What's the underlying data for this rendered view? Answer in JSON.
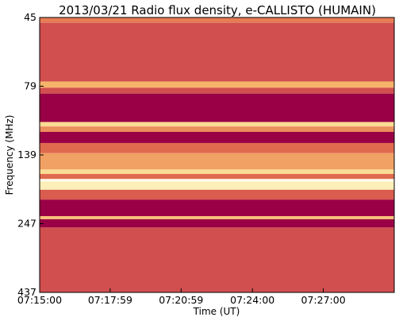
{
  "chart_data": {
    "type": "heatmap",
    "title": "2013/03/21  Radio flux density, e-CALLISTO (HUMAIN)",
    "xlabel": "Time (UT)",
    "ylabel": "Frequency (MHz)",
    "x_tick_labels": [
      "07:15:00",
      "07:17:59",
      "07:20:59",
      "07:24:00",
      "07:27:00"
    ],
    "x_tick_values": [
      "07:15:00",
      "07:17:59",
      "07:20:59",
      "07:24:00",
      "07:27:00"
    ],
    "xlim": [
      "07:15:00",
      "07:30:00"
    ],
    "y_tick_labels": [
      "45",
      "79",
      "139",
      "247",
      "437"
    ],
    "y_tick_values": [
      45,
      79,
      139,
      247,
      437
    ],
    "ylim": [
      45,
      437
    ],
    "y_inverted": true,
    "grid": false,
    "colormap": [
      "#9a0046",
      "#c2334f",
      "#e06a4e",
      "#f6b36a",
      "#fde9a2",
      "#ffffff"
    ],
    "bands": [
      {
        "f_top": 45,
        "f_bottom": 47,
        "level": 0.45
      },
      {
        "f_top": 47,
        "f_bottom": 76,
        "level": 0.3
      },
      {
        "f_top": 76,
        "f_bottom": 80,
        "level": 0.6
      },
      {
        "f_top": 80,
        "f_bottom": 84,
        "level": 0.3
      },
      {
        "f_top": 84,
        "f_bottom": 106,
        "level": 0.0
      },
      {
        "f_top": 106,
        "f_bottom": 110,
        "level": 0.75
      },
      {
        "f_top": 110,
        "f_bottom": 115,
        "level": 0.5
      },
      {
        "f_top": 115,
        "f_bottom": 126,
        "level": 0.0
      },
      {
        "f_top": 126,
        "f_bottom": 137,
        "level": 0.4
      },
      {
        "f_top": 137,
        "f_bottom": 157,
        "level": 0.55
      },
      {
        "f_top": 157,
        "f_bottom": 163,
        "level": 0.75
      },
      {
        "f_top": 163,
        "f_bottom": 170,
        "level": 0.4
      },
      {
        "f_top": 170,
        "f_bottom": 174,
        "level": 0.95
      },
      {
        "f_top": 174,
        "f_bottom": 186,
        "level": 0.85
      },
      {
        "f_top": 186,
        "f_bottom": 202,
        "level": 0.35
      },
      {
        "f_top": 202,
        "f_bottom": 232,
        "level": 0.0
      },
      {
        "f_top": 232,
        "f_bottom": 238,
        "level": 0.65
      },
      {
        "f_top": 238,
        "f_bottom": 255,
        "level": 0.0
      },
      {
        "f_top": 255,
        "f_bottom": 437,
        "level": 0.3
      }
    ]
  }
}
